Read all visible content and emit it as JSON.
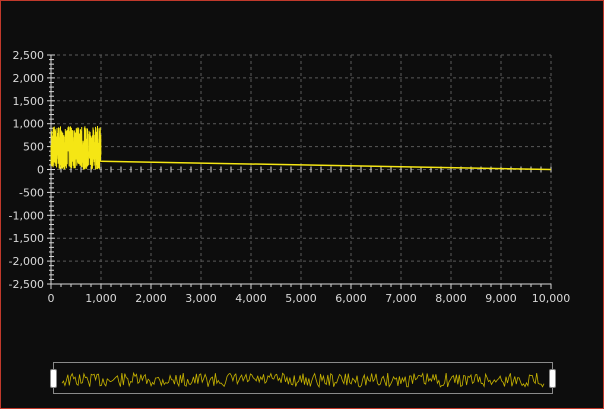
{
  "colors": {
    "background": "#0d0d0d",
    "series": "#f5e614",
    "grid": "#5a5a5a",
    "axis": "#d9d9d9",
    "border": "#c0392b"
  },
  "chart_data": {
    "type": "line",
    "title": "",
    "xlabel": "",
    "ylabel": "",
    "xlim": [
      0,
      10000
    ],
    "ylim": [
      -2500,
      2500
    ],
    "grid": true,
    "x_ticks": [
      "0",
      "1,000",
      "2,000",
      "3,000",
      "4,000",
      "5,000",
      "6,000",
      "7,000",
      "8,000",
      "9,000",
      "10,000"
    ],
    "y_ticks": [
      "2,500",
      "2,000",
      "1,500",
      "1,000",
      "500",
      "0",
      "-500",
      "-1,000",
      "-1,500",
      "-2,000",
      "-2,500"
    ],
    "series": [
      {
        "noise_segment": {
          "x_range": [
            0,
            1000
          ],
          "y_range": [
            0,
            950
          ]
        },
        "trend_line": {
          "x": [
            1000,
            10000
          ],
          "y": [
            180,
            0
          ]
        }
      }
    ]
  },
  "navigator": {
    "range": [
      0,
      10000
    ]
  }
}
